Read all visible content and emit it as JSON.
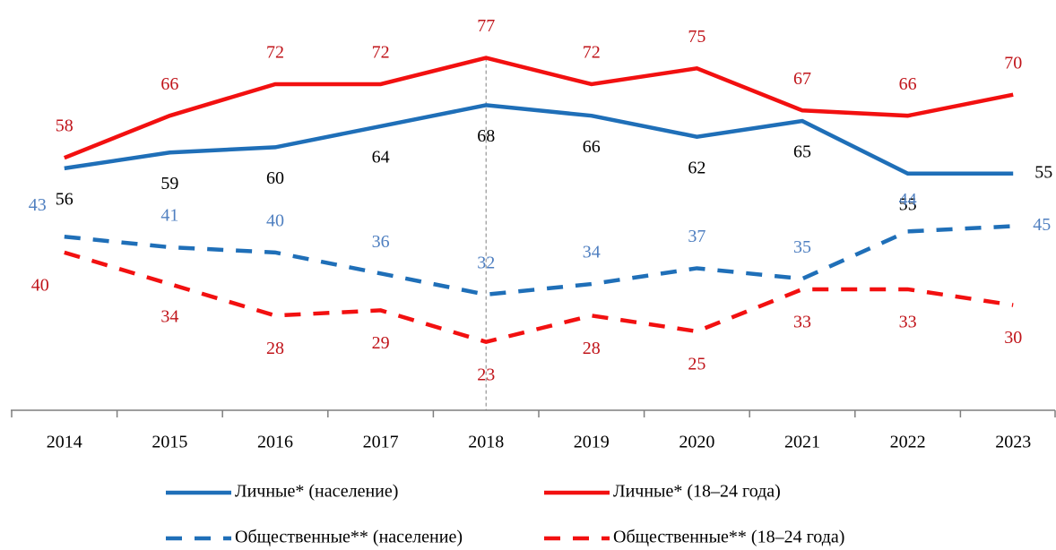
{
  "chart_data": {
    "type": "line",
    "categories": [
      "2014",
      "2015",
      "2016",
      "2017",
      "2018",
      "2019",
      "2020",
      "2021",
      "2022",
      "2023"
    ],
    "series": [
      {
        "name": "Личные* (население)",
        "color": "#1f6fb8",
        "label_color": "#000000",
        "dash": false,
        "values": [
          56,
          59,
          60,
          64,
          68,
          66,
          62,
          65,
          55,
          55
        ]
      },
      {
        "name": "Личные* (18–24 года)",
        "color": "#f21010",
        "label_color": "#c0141a",
        "dash": false,
        "values": [
          58,
          66,
          72,
          72,
          77,
          72,
          75,
          67,
          66,
          70
        ]
      },
      {
        "name": "Общественные** (население)",
        "color": "#1f6fb8",
        "label_color": "#4f7fc0",
        "dash": true,
        "values": [
          43,
          41,
          40,
          36,
          32,
          34,
          37,
          35,
          44,
          45
        ]
      },
      {
        "name": "Общественные** (18–24 года)",
        "color": "#f21010",
        "label_color": "#c0141a",
        "dash": true,
        "values": [
          40,
          34,
          28,
          29,
          23,
          28,
          25,
          33,
          33,
          30
        ]
      }
    ],
    "ylim": [
      10,
      88
    ],
    "vline": "2018",
    "legend": "bottom"
  }
}
